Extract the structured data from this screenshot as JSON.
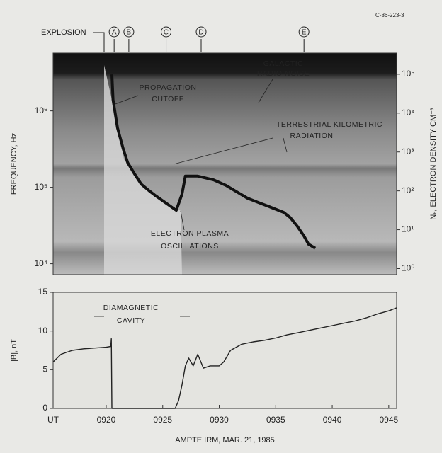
{
  "figure_id": "C-86-223-3",
  "chart_data": [
    {
      "type": "line",
      "log_y": true,
      "ylabel": "FREQUENCY, Hz",
      "y2label": "Nₑ, ELECTRON DENSITY CM⁻³",
      "xlim": [
        915.3,
        945.7
      ],
      "ylim": [
        7200,
        5700000
      ],
      "yticks": [
        {
          "value": 10000,
          "label": "10⁴"
        },
        {
          "value": 100000,
          "label": "10⁵"
        },
        {
          "value": 1000000,
          "label": "10⁶"
        }
      ],
      "y2lim": [
        0.7,
        350000
      ],
      "y2ticks": [
        {
          "value": 1,
          "label": "10⁰"
        },
        {
          "value": 10,
          "label": "10¹"
        },
        {
          "value": 100,
          "label": "10²"
        },
        {
          "value": 1000,
          "label": "10³"
        },
        {
          "value": 10000,
          "label": "10⁴"
        },
        {
          "value": 100000,
          "label": "10⁵"
        }
      ],
      "explosion": "EXPLOSION",
      "events": [
        {
          "label": "A",
          "x": 920.7
        },
        {
          "label": "B",
          "x": 922.0
        },
        {
          "label": "C",
          "x": 925.3
        },
        {
          "label": "D",
          "x": 928.4
        },
        {
          "label": "E",
          "x": 937.5
        }
      ],
      "annotations": [
        [
          "GALACTIC",
          "RADIO NOISE"
        ],
        [
          "PROPAGATION",
          "CUTOFF"
        ],
        [
          "TERRESTRIAL KILOMETRIC",
          "RADIATION"
        ],
        [
          "ELECTRON PLASMA",
          "OSCILLATIONS"
        ]
      ],
      "x": [
        920.5,
        920.6,
        921.0,
        921.5,
        921.9,
        922.5,
        923.1,
        923.8,
        924.4,
        925.3,
        926.2,
        926.7,
        927.0,
        928.1,
        929.5,
        930.6,
        931.5,
        932.5,
        933.5,
        934.4,
        935.7,
        936.3,
        936.9,
        937.5,
        937.9,
        938.5
      ],
      "values": [
        3000000,
        1400000,
        600000,
        320000,
        210000,
        150000,
        110000,
        90000,
        77000,
        62000,
        50000,
        81000,
        140000,
        140000,
        125000,
        106000,
        88000,
        72000,
        63000,
        56000,
        47000,
        40000,
        31000,
        23000,
        18000,
        16000
      ],
      "color": "#111111"
    },
    {
      "type": "line",
      "ylabel": "|B|, nT",
      "xlabel": "AMPTE IRM, MAR. 21, 1985",
      "x_origin_label": "UT",
      "xlim": [
        915.3,
        945.7
      ],
      "xticks": [
        {
          "value": 920,
          "label": "0920"
        },
        {
          "value": 925,
          "label": "0925"
        },
        {
          "value": 930,
          "label": "0930"
        },
        {
          "value": 935,
          "label": "0935"
        },
        {
          "value": 940,
          "label": "0940"
        },
        {
          "value": 945,
          "label": "0945"
        }
      ],
      "ylim": [
        0,
        15
      ],
      "yticks": [
        0,
        5,
        10,
        15
      ],
      "annotations": [
        [
          "DIAMAGNETIC",
          "CAVITY"
        ]
      ],
      "x": [
        915.3,
        916,
        917,
        918,
        919,
        920,
        920.4,
        920.45,
        920.5,
        926.1,
        926.4,
        926.7,
        927.0,
        927.3,
        927.7,
        928.1,
        928.6,
        929.2,
        930.0,
        930.4,
        931.0,
        932.0,
        933.0,
        934.0,
        935.0,
        936.0,
        937.0,
        938.0,
        939.0,
        940.0,
        941.0,
        942.0,
        943.0,
        944.0,
        945.0,
        945.7
      ],
      "values": [
        6.0,
        7.0,
        7.5,
        7.7,
        7.8,
        7.9,
        8.0,
        9.0,
        0,
        0,
        1.0,
        3.0,
        5.5,
        6.5,
        5.5,
        7.0,
        5.2,
        5.5,
        5.5,
        6.0,
        7.5,
        8.3,
        8.6,
        8.8,
        9.1,
        9.5,
        9.8,
        10.1,
        10.4,
        10.7,
        11.0,
        11.3,
        11.7,
        12.2,
        12.6,
        13.0
      ],
      "color": "#222222"
    }
  ]
}
